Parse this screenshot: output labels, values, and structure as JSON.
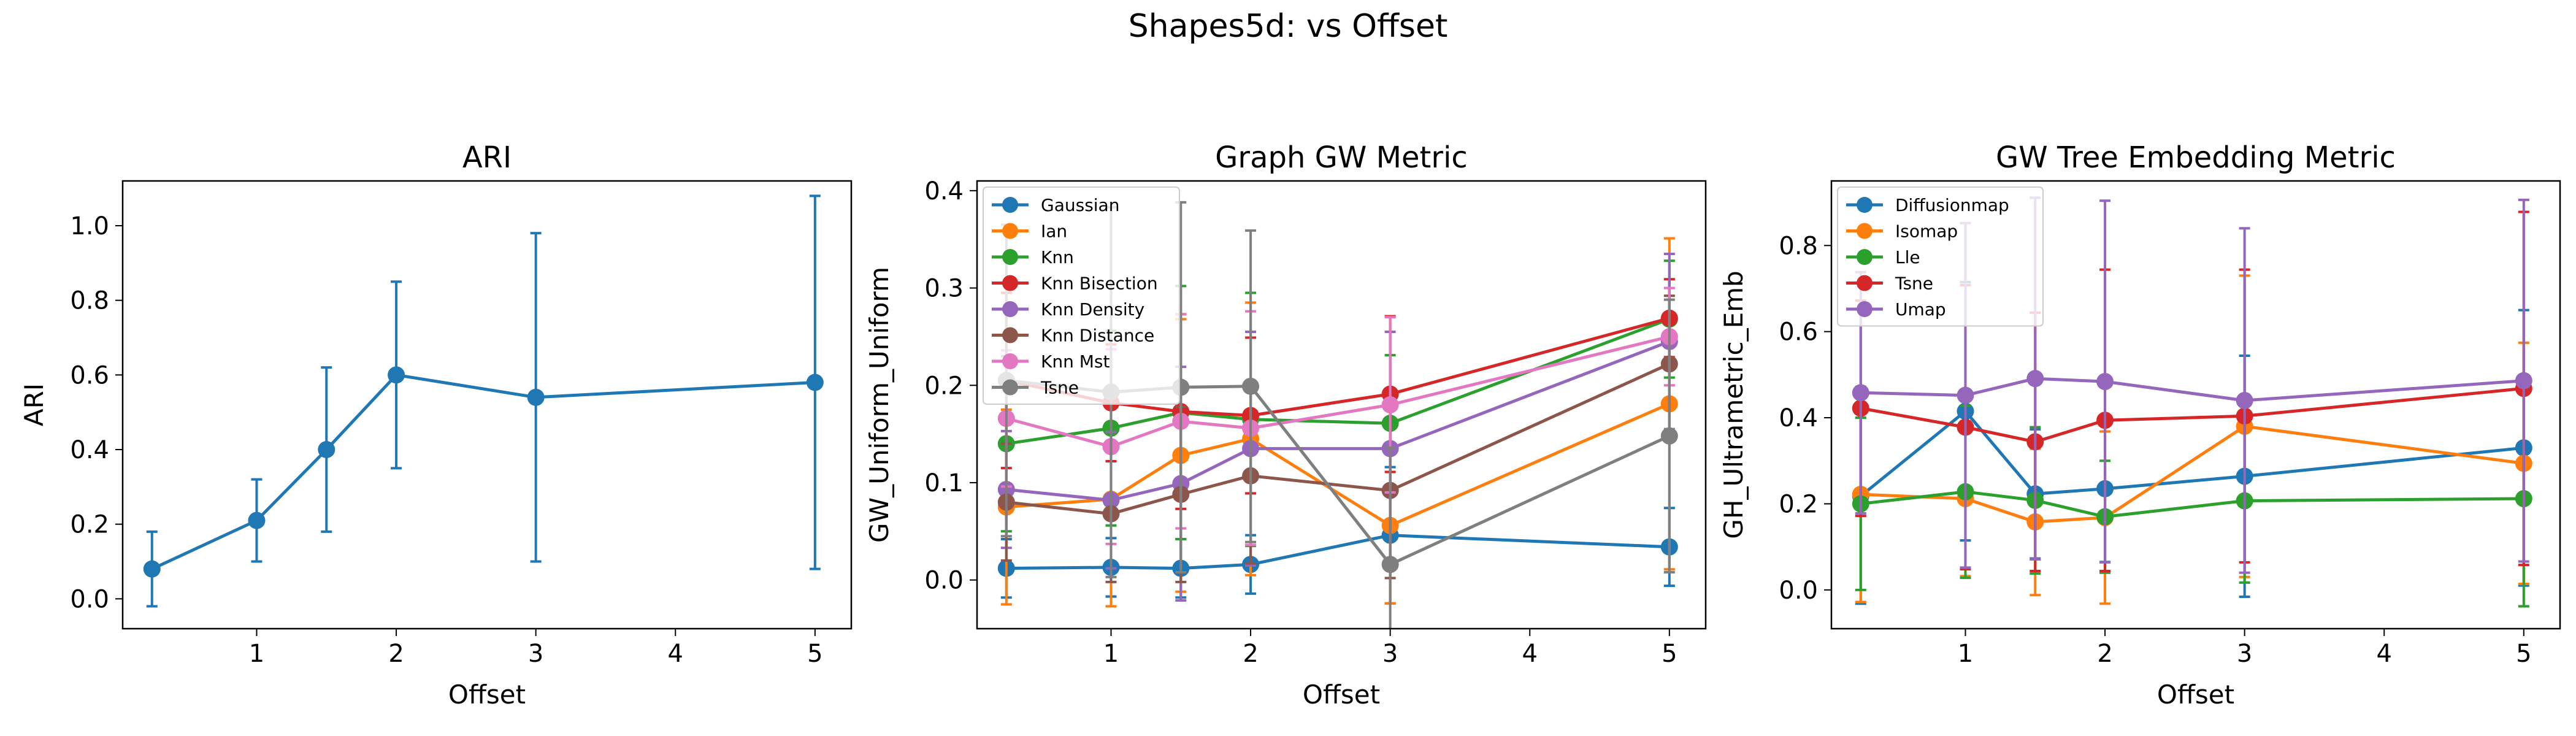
{
  "figure": {
    "title": "Shapes5d: vs Offset"
  },
  "chart_data": [
    {
      "type": "line",
      "title": "ARI",
      "xlabel": "Offset",
      "ylabel": "ARI",
      "xlim": [
        0.04,
        5.26
      ],
      "ylim": [
        -0.08,
        1.12
      ],
      "xticks": [
        1,
        2,
        3,
        4,
        5
      ],
      "yticks": [
        0.0,
        0.2,
        0.4,
        0.6,
        0.8,
        1.0
      ],
      "ytick_decimals": 1,
      "legend": null,
      "series": [
        {
          "name": "",
          "color": "#1f77b4",
          "x": [
            0.25,
            1,
            1.5,
            2,
            3,
            5
          ],
          "y": [
            0.08,
            0.21,
            0.4,
            0.6,
            0.54,
            0.58
          ],
          "err": [
            0.1,
            0.11,
            0.22,
            0.25,
            0.44,
            0.5
          ]
        }
      ]
    },
    {
      "type": "line",
      "title": "Graph GW Metric",
      "xlabel": "Offset",
      "ylabel": "GW_Uniform_Uniform",
      "xlim": [
        0.04,
        5.26
      ],
      "ylim": [
        -0.05,
        0.41
      ],
      "xticks": [
        1,
        2,
        3,
        4,
        5
      ],
      "yticks": [
        0.0,
        0.1,
        0.2,
        0.3,
        0.4
      ],
      "ytick_decimals": 1,
      "legend": "upper left",
      "series": [
        {
          "name": "Gaussian",
          "color": "#1f77b4",
          "x": [
            0.25,
            1,
            1.5,
            2,
            3,
            5
          ],
          "y": [
            0.012,
            0.013,
            0.012,
            0.016,
            0.046,
            0.034
          ],
          "err": [
            0.03,
            0.03,
            0.03,
            0.03,
            0.07,
            0.04
          ]
        },
        {
          "name": "Ian",
          "color": "#ff7f0e",
          "x": [
            0.25,
            1,
            1.5,
            2,
            3,
            5
          ],
          "y": [
            0.075,
            0.083,
            0.128,
            0.145,
            0.056,
            0.181
          ],
          "err": [
            0.1,
            0.11,
            0.14,
            0.14,
            0.08,
            0.17
          ]
        },
        {
          "name": "Knn",
          "color": "#2ca02c",
          "x": [
            0.25,
            1,
            1.5,
            2,
            3,
            5
          ],
          "y": [
            0.14,
            0.156,
            0.172,
            0.165,
            0.161,
            0.268
          ],
          "err": [
            0.09,
            0.1,
            0.13,
            0.13,
            0.07,
            0.06
          ]
        },
        {
          "name": "Knn Bisection",
          "color": "#d62728",
          "x": [
            0.25,
            1,
            1.5,
            2,
            3,
            5
          ],
          "y": [
            0.205,
            0.182,
            0.173,
            0.169,
            0.191,
            0.269
          ],
          "err": [
            0.09,
            0.06,
            0.1,
            0.08,
            0.08,
            0.04
          ]
        },
        {
          "name": "Knn Density",
          "color": "#9467bd",
          "x": [
            0.25,
            1,
            1.5,
            2,
            3,
            5
          ],
          "y": [
            0.093,
            0.082,
            0.099,
            0.135,
            0.135,
            0.245
          ],
          "err": [
            0.06,
            0.07,
            0.12,
            0.12,
            0.12,
            0.09
          ]
        },
        {
          "name": "Knn Distance",
          "color": "#8c564b",
          "x": [
            0.25,
            1,
            1.5,
            2,
            3,
            5
          ],
          "y": [
            0.08,
            0.068,
            0.088,
            0.107,
            0.092,
            0.222
          ],
          "err": [
            0.06,
            0.07,
            0.09,
            0.09,
            0.09,
            0.07
          ]
        },
        {
          "name": "Knn Mst",
          "color": "#e377c2",
          "x": [
            0.25,
            1,
            1.5,
            2,
            3,
            5
          ],
          "y": [
            0.166,
            0.137,
            0.163,
            0.156,
            0.18,
            0.25
          ],
          "err": [
            0.07,
            0.1,
            0.11,
            0.12,
            0.09,
            0.05
          ]
        },
        {
          "name": "Tsne",
          "color": "#7f7f7f",
          "x": [
            0.25,
            1,
            1.5,
            2,
            3,
            5
          ],
          "y": [
            0.205,
            0.193,
            0.198,
            0.199,
            0.016,
            0.148
          ],
          "err": [
            0.16,
            0.19,
            0.19,
            0.16,
            0.12,
            0.14
          ]
        }
      ]
    },
    {
      "type": "line",
      "title": "GW Tree Embedding Metric",
      "xlabel": "Offset",
      "ylabel": "GH_Ultrametric_Emb",
      "xlim": [
        0.04,
        5.26
      ],
      "ylim": [
        -0.09,
        0.95
      ],
      "xticks": [
        1,
        2,
        3,
        4,
        5
      ],
      "yticks": [
        0.0,
        0.2,
        0.4,
        0.6,
        0.8
      ],
      "ytick_decimals": 1,
      "legend": "upper left",
      "series": [
        {
          "name": "Diffusionmap",
          "color": "#1f77b4",
          "x": [
            0.25,
            1,
            1.5,
            2,
            3,
            5
          ],
          "y": [
            0.218,
            0.415,
            0.223,
            0.235,
            0.264,
            0.33
          ],
          "err": [
            0.25,
            0.3,
            0.15,
            0.17,
            0.28,
            0.32
          ]
        },
        {
          "name": "Isomap",
          "color": "#ff7f0e",
          "x": [
            0.25,
            1,
            1.5,
            2,
            3,
            5
          ],
          "y": [
            0.222,
            0.212,
            0.158,
            0.168,
            0.38,
            0.294
          ],
          "err": [
            0.25,
            0.18,
            0.17,
            0.2,
            0.35,
            0.28
          ]
        },
        {
          "name": "Lle",
          "color": "#2ca02c",
          "x": [
            0.25,
            1,
            1.5,
            2,
            3,
            5
          ],
          "y": [
            0.2,
            0.228,
            0.208,
            0.17,
            0.207,
            0.212
          ],
          "err": [
            0.2,
            0.2,
            0.17,
            0.13,
            0.19,
            0.25
          ]
        },
        {
          "name": "Tsne",
          "color": "#d62728",
          "x": [
            0.25,
            1,
            1.5,
            2,
            3,
            5
          ],
          "y": [
            0.422,
            0.378,
            0.344,
            0.394,
            0.404,
            0.468
          ],
          "err": [
            0.25,
            0.33,
            0.3,
            0.35,
            0.34,
            0.41
          ]
        },
        {
          "name": "Umap",
          "color": "#9467bd",
          "x": [
            0.25,
            1,
            1.5,
            2,
            3,
            5
          ],
          "y": [
            0.458,
            0.452,
            0.491,
            0.484,
            0.44,
            0.486
          ],
          "err": [
            0.28,
            0.4,
            0.42,
            0.42,
            0.4,
            0.42
          ]
        }
      ]
    }
  ]
}
